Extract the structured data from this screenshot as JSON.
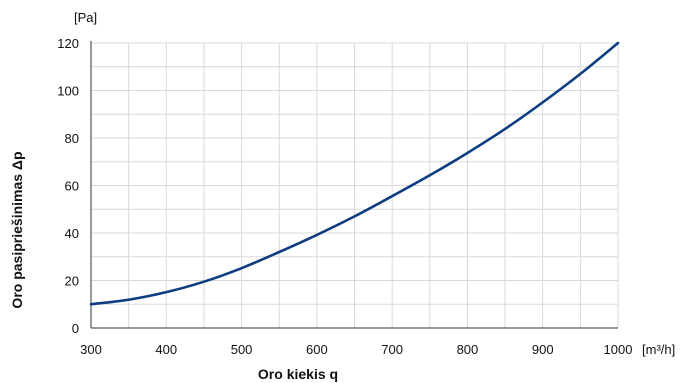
{
  "chart_data": {
    "type": "line",
    "title": "",
    "xlabel": "Oro kiekis q",
    "ylabel": "Oro pasipriešinimas Δp",
    "x_unit": "[m³/h]",
    "y_unit": "[Pa]",
    "xlim": [
      300,
      1000
    ],
    "ylim": [
      0,
      120
    ],
    "x_ticks": [
      300,
      400,
      500,
      600,
      700,
      800,
      900,
      1000
    ],
    "y_ticks": [
      0,
      20,
      40,
      60,
      80,
      100,
      120
    ],
    "grid": true,
    "legend": "none",
    "line_color": "#0d3d80",
    "grid_color": "#d9d9d9",
    "series": [
      {
        "x": [
          300,
          350,
          400,
          450,
          500,
          550,
          600,
          650,
          700,
          750,
          800,
          850,
          900,
          950,
          1000
        ],
        "values": [
          10,
          11.9,
          15.1,
          19.5,
          25.2,
          32,
          39.2,
          47,
          55.5,
          64.3,
          73.7,
          83.8,
          95,
          107,
          120
        ]
      }
    ]
  }
}
